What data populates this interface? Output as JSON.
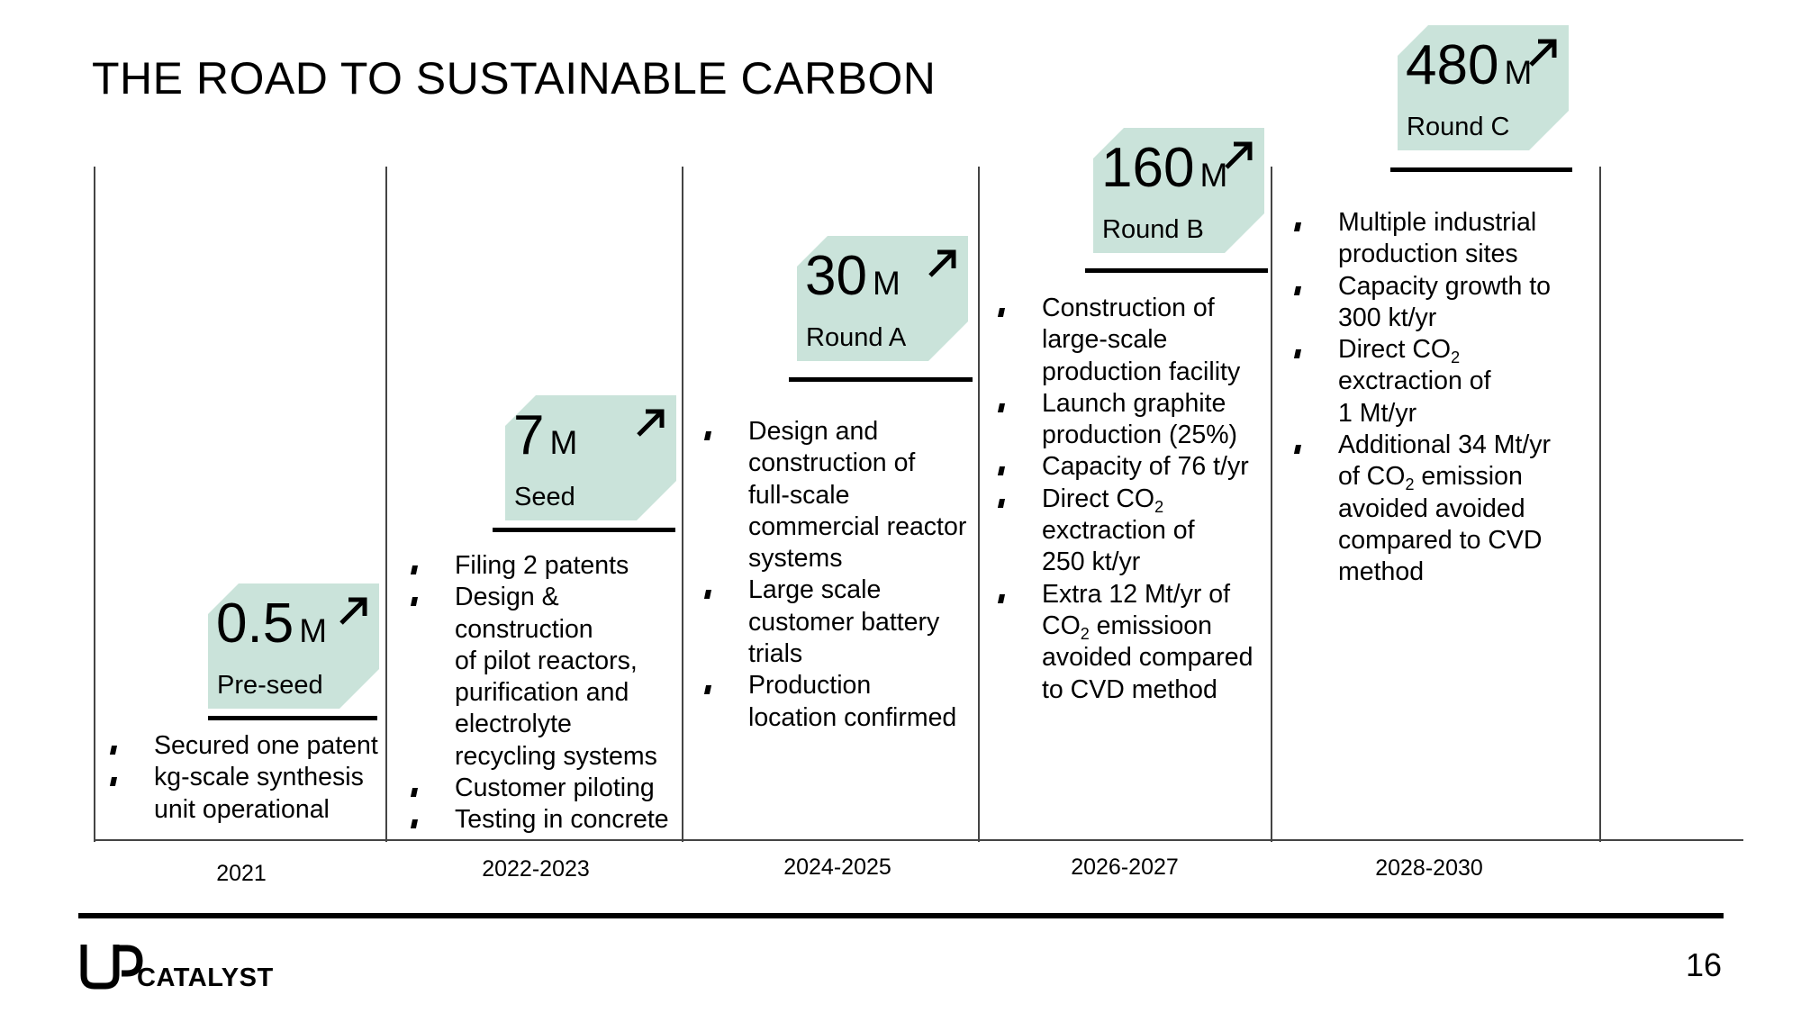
{
  "title": "THE ROAD TO SUSTAINABLE CARBON",
  "colors": {
    "card_bg": "#cae3da",
    "text": "#000000",
    "rule": "#000000"
  },
  "stages": [
    {
      "period": "2021",
      "amount": "0.5",
      "unit": "M",
      "round": "Pre-seed",
      "icon": "arrow-up-right-icon",
      "bullets": [
        {
          "text": "Secured one patent"
        },
        {
          "text": "kg-scale synthesis",
          "cont": "unit operational"
        }
      ]
    },
    {
      "period": "2022-2023",
      "amount": "7",
      "unit": "M",
      "round": "Seed",
      "icon": "arrow-up-right-icon",
      "bullets": [
        {
          "text": "Filing 2 patents"
        },
        {
          "text": "Design &",
          "cont": "construction",
          "cont2": "of pilot reactors,",
          "cont3": "purification and",
          "cont4": "electrolyte",
          "cont5": "recycling systems"
        },
        {
          "text": "Customer piloting"
        },
        {
          "text": "Testing in concrete"
        }
      ]
    },
    {
      "period": "2024-2025",
      "amount": "30",
      "unit": "M",
      "round": "Round A",
      "icon": "arrow-up-right-icon",
      "bullets": [
        {
          "text": "Design and",
          "cont": "construction of",
          "cont2": "full-scale",
          "cont3": "commercial reactor",
          "cont4": "systems"
        },
        {
          "text": "Large scale",
          "cont": "customer battery",
          "cont2": "trials"
        },
        {
          "text": "Production",
          "cont": "location confirmed"
        }
      ]
    },
    {
      "period": "2026-2027",
      "amount": "160",
      "unit": "M",
      "round": "Round B",
      "icon": "arrow-up-right-icon",
      "bullets": [
        {
          "text": "Construction of",
          "cont": "large-scale",
          "cont2": "production facility"
        },
        {
          "text": "Launch graphite",
          "cont": "production (25%)"
        },
        {
          "text": "Capacity of 76 t/yr"
        },
        {
          "pre": "Direct CO",
          "sub": "2",
          "cont": "exctraction of",
          "cont2": "250 kt/yr"
        },
        {
          "text": "Extra 12 Mt/yr of",
          "pre2": "CO",
          "sub2": "2",
          "post2": " emissioon",
          "cont3": "avoided compared",
          "cont4": "to CVD method"
        }
      ]
    },
    {
      "period": "2028-2030",
      "amount": "480",
      "unit": "M",
      "round": "Round C",
      "icon": "arrow-up-right-icon",
      "bullets": [
        {
          "text": "Multiple industrial",
          "cont": "production sites"
        },
        {
          "text": "Capacity growth to",
          "cont": "300 kt/yr"
        },
        {
          "pre": "Direct CO",
          "sub": "2",
          "cont": "exctraction of",
          "cont2": "1 Mt/yr"
        },
        {
          "text": "Additional 34 Mt/yr",
          "pre2": "of CO",
          "sub2": "2",
          "post2": " emission",
          "cont3": "avoided avoided",
          "cont4": "compared to CVD",
          "cont5": "method"
        }
      ]
    }
  ],
  "footer": {
    "logo_text": "CATALYST",
    "logo_icon": "up-catalyst-logo-icon",
    "page_number": "16"
  }
}
